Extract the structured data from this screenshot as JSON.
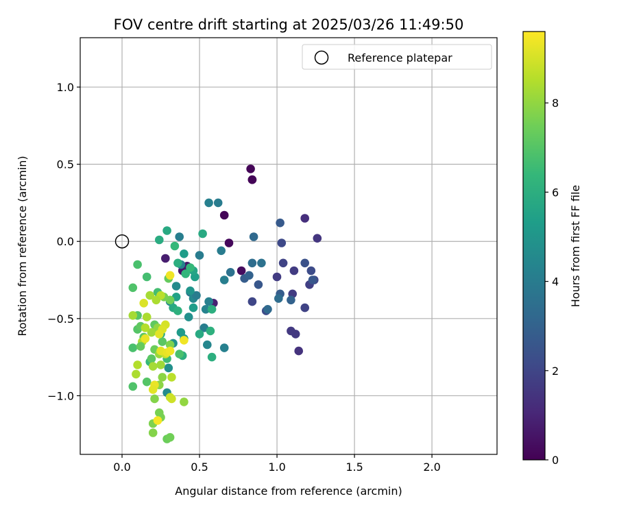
{
  "chart_data": {
    "type": "scatter",
    "title": "FOV centre drift starting at 2025/03/26 11:49:50",
    "xlabel": "Angular distance from reference (arcmin)",
    "ylabel": "Rotation from reference (arcmin)",
    "xlim": [
      -0.27,
      2.42
    ],
    "ylim": [
      -1.38,
      1.32
    ],
    "xticks": [
      0.0,
      0.5,
      1.0,
      1.5,
      2.0
    ],
    "xtick_labels": [
      "0.0",
      "0.5",
      "1.0",
      "1.5",
      "2.0"
    ],
    "yticks": [
      -1.0,
      -0.5,
      0.0,
      0.5,
      1.0
    ],
    "ytick_labels": [
      "−1.0",
      "−0.5",
      "0.0",
      "0.5",
      "1.0"
    ],
    "grid": true,
    "legend": {
      "placement": "top-right",
      "entries": [
        {
          "label": "Reference platepar",
          "marker": "open-circle"
        }
      ]
    },
    "reference_point": {
      "x": 0.0,
      "y": 0.0
    },
    "colorbar": {
      "label": "Hours from first FF file",
      "range": [
        0,
        9.6
      ],
      "ticks": [
        0,
        2,
        4,
        6,
        8
      ],
      "tick_labels": [
        "0",
        "2",
        "4",
        "6",
        "8"
      ],
      "colormap": "viridis"
    },
    "points": [
      [
        0.83,
        0.47,
        0.1
      ],
      [
        0.84,
        0.4,
        0.1
      ],
      [
        0.84,
        0.4,
        0.1
      ],
      [
        0.66,
        0.17,
        0.1
      ],
      [
        0.69,
        -0.01,
        0.2
      ],
      [
        0.77,
        -0.19,
        0.3
      ],
      [
        0.39,
        -0.19,
        0.5
      ],
      [
        0.42,
        -0.16,
        0.6
      ],
      [
        0.28,
        -0.11,
        0.8
      ],
      [
        0.59,
        -0.4,
        0.9
      ],
      [
        1.18,
        0.15,
        1.3
      ],
      [
        1.26,
        0.02,
        1.5
      ],
      [
        1.14,
        -0.71,
        1.4
      ],
      [
        1.12,
        -0.6,
        1.6
      ],
      [
        1.09,
        -0.58,
        1.6
      ],
      [
        1.1,
        -0.34,
        1.7
      ],
      [
        1.11,
        -0.19,
        1.7
      ],
      [
        1.04,
        -0.14,
        1.9
      ],
      [
        1.03,
        -0.01,
        2.1
      ],
      [
        1.0,
        -0.23,
        1.7
      ],
      [
        1.24,
        -0.25,
        2.0
      ],
      [
        1.21,
        -0.28,
        1.8
      ],
      [
        1.18,
        -0.14,
        2.4
      ],
      [
        1.18,
        -0.43,
        1.9
      ],
      [
        1.22,
        -0.19,
        2.2
      ],
      [
        1.02,
        0.12,
        2.7
      ],
      [
        1.02,
        -0.34,
        2.8
      ],
      [
        1.09,
        -0.38,
        3.0
      ],
      [
        0.93,
        -0.45,
        2.2
      ],
      [
        0.94,
        -0.44,
        3.3
      ],
      [
        0.84,
        -0.39,
        2.0
      ],
      [
        0.88,
        -0.28,
        2.6
      ],
      [
        0.79,
        -0.24,
        2.8
      ],
      [
        0.82,
        -0.22,
        3.0
      ],
      [
        0.84,
        -0.14,
        3.4
      ],
      [
        0.9,
        -0.14,
        3.6
      ],
      [
        0.85,
        0.03,
        3.3
      ],
      [
        1.01,
        -0.37,
        3.4
      ],
      [
        1.23,
        -0.25,
        2.6
      ],
      [
        0.7,
        -0.2,
        3.6
      ],
      [
        0.64,
        -0.06,
        4.0
      ],
      [
        0.62,
        0.25,
        4.0
      ],
      [
        0.56,
        0.25,
        4.2
      ],
      [
        0.66,
        -0.25,
        4.1
      ],
      [
        0.66,
        -0.69,
        4.2
      ],
      [
        0.56,
        -0.39,
        4.2
      ],
      [
        0.54,
        -0.44,
        4.3
      ],
      [
        0.55,
        -0.67,
        4.4
      ],
      [
        0.53,
        -0.56,
        4.1
      ],
      [
        0.5,
        -0.09,
        4.0
      ],
      [
        0.44,
        -0.33,
        3.7
      ],
      [
        0.46,
        -0.37,
        4.5
      ],
      [
        0.48,
        -0.35,
        4.0
      ],
      [
        0.37,
        0.03,
        4.1
      ],
      [
        0.38,
        -0.15,
        4.3
      ],
      [
        0.35,
        -0.29,
        4.6
      ],
      [
        0.31,
        -0.39,
        4.5
      ],
      [
        0.33,
        -0.66,
        4.9
      ],
      [
        0.3,
        -0.82,
        4.8
      ],
      [
        0.29,
        -0.98,
        4.6
      ],
      [
        0.43,
        -0.49,
        4.8
      ],
      [
        0.4,
        -0.63,
        5.0
      ],
      [
        0.38,
        -0.59,
        5.2
      ],
      [
        0.44,
        -0.32,
        5.0
      ],
      [
        0.46,
        -0.43,
        5.3
      ],
      [
        0.4,
        -0.08,
        5.3
      ],
      [
        0.47,
        -0.23,
        5.4
      ],
      [
        0.52,
        0.05,
        5.8
      ],
      [
        0.46,
        -0.19,
        5.6
      ],
      [
        0.5,
        -0.6,
        5.8
      ],
      [
        0.35,
        -0.36,
        5.5
      ],
      [
        0.36,
        -0.14,
        6.0
      ],
      [
        0.29,
        0.07,
        5.8
      ],
      [
        0.24,
        0.01,
        5.9
      ],
      [
        0.25,
        -0.6,
        5.9
      ],
      [
        0.39,
        -0.74,
        6.0
      ],
      [
        0.33,
        -0.43,
        5.8
      ],
      [
        0.58,
        -0.75,
        6.0
      ],
      [
        0.58,
        -0.44,
        6.0
      ],
      [
        0.57,
        -0.58,
        6.1
      ],
      [
        0.41,
        -0.21,
        6.3
      ],
      [
        0.36,
        -0.45,
        6.1
      ],
      [
        0.44,
        -0.17,
        6.4
      ],
      [
        0.34,
        -0.03,
        6.4
      ],
      [
        0.29,
        -0.76,
        6.6
      ],
      [
        0.23,
        -0.33,
        6.7
      ],
      [
        0.18,
        -0.78,
        6.4
      ],
      [
        0.16,
        -0.23,
        6.7
      ],
      [
        0.1,
        -0.15,
        6.8
      ],
      [
        0.07,
        -0.3,
        6.9
      ],
      [
        0.07,
        -0.94,
        6.9
      ],
      [
        0.07,
        -0.69,
        6.8
      ],
      [
        0.1,
        -0.57,
        7.0
      ],
      [
        0.1,
        -0.48,
        7.0
      ],
      [
        0.12,
        -0.55,
        7.2
      ],
      [
        0.14,
        -0.62,
        7.1
      ],
      [
        0.16,
        -0.91,
        7.0
      ],
      [
        0.19,
        -0.76,
        7.1
      ],
      [
        0.21,
        -0.54,
        7.2
      ],
      [
        0.21,
        -0.7,
        7.4
      ],
      [
        0.26,
        -0.65,
        7.1
      ],
      [
        0.3,
        -0.24,
        7.3
      ],
      [
        0.29,
        -1.28,
        7.4
      ],
      [
        0.31,
        -1.27,
        7.5
      ],
      [
        0.24,
        -1.11,
        7.6
      ],
      [
        0.25,
        -1.14,
        7.6
      ],
      [
        0.2,
        -1.18,
        7.7
      ],
      [
        0.2,
        -1.24,
        7.8
      ],
      [
        0.21,
        -1.02,
        7.8
      ],
      [
        0.24,
        -0.93,
        7.9
      ],
      [
        0.26,
        -0.88,
        7.9
      ],
      [
        0.31,
        -0.38,
        7.5
      ],
      [
        0.27,
        -0.36,
        7.6
      ],
      [
        0.31,
        -0.67,
        7.7
      ],
      [
        0.24,
        -0.73,
        8.1
      ],
      [
        0.25,
        -0.8,
        8.2
      ],
      [
        0.23,
        -0.56,
        8.0
      ],
      [
        0.18,
        -0.35,
        8.3
      ],
      [
        0.19,
        -0.59,
        8.2
      ],
      [
        0.2,
        -0.81,
        8.3
      ],
      [
        0.16,
        -0.49,
        8.4
      ],
      [
        0.15,
        -0.56,
        8.5
      ],
      [
        0.13,
        -0.65,
        8.5
      ],
      [
        0.1,
        -0.8,
        8.5
      ],
      [
        0.09,
        -0.86,
        8.4
      ],
      [
        0.07,
        -0.48,
        8.3
      ],
      [
        0.25,
        -0.35,
        8.6
      ],
      [
        0.28,
        -0.73,
        8.8
      ],
      [
        0.22,
        -0.38,
        8.4
      ],
      [
        0.32,
        -0.88,
        8.6
      ],
      [
        0.31,
        -1.01,
        8.8
      ],
      [
        0.32,
        -1.02,
        8.9
      ],
      [
        0.28,
        -0.54,
        9.0
      ],
      [
        0.26,
        -0.57,
        9.1
      ],
      [
        0.24,
        -0.6,
        9.2
      ],
      [
        0.25,
        -0.71,
        9.2
      ],
      [
        0.29,
        -0.72,
        9.3
      ],
      [
        0.31,
        -0.71,
        9.4
      ],
      [
        0.31,
        -0.22,
        9.4
      ],
      [
        0.21,
        -0.93,
        9.3
      ],
      [
        0.2,
        -0.96,
        9.2
      ],
      [
        0.4,
        -1.04,
        8.0
      ],
      [
        0.23,
        -1.16,
        9.5
      ],
      [
        0.14,
        -0.4,
        9.1
      ],
      [
        0.15,
        -0.63,
        9.3
      ],
      [
        0.4,
        -0.64,
        9.4
      ],
      [
        0.37,
        -0.73,
        6.8
      ],
      [
        0.12,
        -0.68,
        7.3
      ]
    ]
  }
}
